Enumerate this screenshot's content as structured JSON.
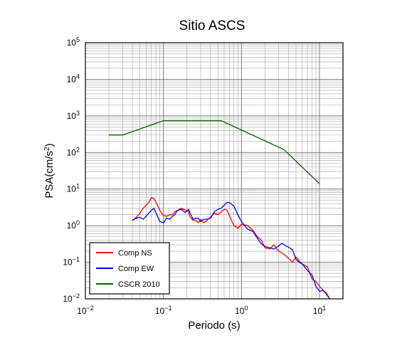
{
  "chart_data": {
    "type": "line",
    "title": "Sitio ASCS",
    "xlabel": "Periodo (s)",
    "ylabel": "PSA(cm/s2)",
    "x_scale": "log",
    "y_scale": "log",
    "xlim": [
      0.01,
      20
    ],
    "ylim": [
      0.01,
      100000
    ],
    "grid": true,
    "legend_position": "bottom-left",
    "x_ticks": [
      {
        "base": "10",
        "exp": "−2"
      },
      {
        "base": "10",
        "exp": "−1"
      },
      {
        "base": "10",
        "exp": "0"
      },
      {
        "base": "10",
        "exp": "1"
      }
    ],
    "y_ticks": [
      {
        "base": "10",
        "exp": "−2"
      },
      {
        "base": "10",
        "exp": "−1"
      },
      {
        "base": "10",
        "exp": "0"
      },
      {
        "base": "10",
        "exp": "1"
      },
      {
        "base": "10",
        "exp": "2"
      },
      {
        "base": "10",
        "exp": "3"
      },
      {
        "base": "10",
        "exp": "4"
      },
      {
        "base": "10",
        "exp": "5"
      }
    ],
    "series": [
      {
        "name": "Comp NS",
        "color": "#ff0000",
        "points": [
          [
            0.04,
            1.4
          ],
          [
            0.045,
            1.7
          ],
          [
            0.05,
            2.2
          ],
          [
            0.055,
            3.0
          ],
          [
            0.06,
            3.6
          ],
          [
            0.065,
            4.3
          ],
          [
            0.07,
            5.8
          ],
          [
            0.075,
            5.6
          ],
          [
            0.08,
            4.6
          ],
          [
            0.09,
            2.6
          ],
          [
            0.1,
            1.9
          ],
          [
            0.11,
            1.8
          ],
          [
            0.12,
            2.0
          ],
          [
            0.13,
            2.0
          ],
          [
            0.14,
            2.4
          ],
          [
            0.15,
            2.6
          ],
          [
            0.17,
            3.0
          ],
          [
            0.19,
            2.7
          ],
          [
            0.21,
            2.4
          ],
          [
            0.22,
            1.7
          ],
          [
            0.24,
            1.4
          ],
          [
            0.26,
            1.4
          ],
          [
            0.28,
            1.2
          ],
          [
            0.3,
            1.5
          ],
          [
            0.33,
            1.2
          ],
          [
            0.36,
            1.4
          ],
          [
            0.4,
            1.7
          ],
          [
            0.45,
            2.2
          ],
          [
            0.5,
            2.0
          ],
          [
            0.55,
            2.4
          ],
          [
            0.6,
            2.8
          ],
          [
            0.65,
            2.7
          ],
          [
            0.7,
            1.9
          ],
          [
            0.8,
            1.0
          ],
          [
            0.9,
            0.85
          ],
          [
            1.0,
            1.1
          ],
          [
            1.2,
            1.0
          ],
          [
            1.4,
            0.75
          ],
          [
            1.6,
            0.5
          ],
          [
            1.8,
            0.4
          ],
          [
            2.0,
            0.25
          ],
          [
            2.3,
            0.23
          ],
          [
            2.6,
            0.3
          ],
          [
            3.0,
            0.2
          ],
          [
            3.3,
            0.18
          ],
          [
            3.7,
            0.15
          ],
          [
            4.0,
            0.13
          ],
          [
            4.5,
            0.1
          ],
          [
            5.0,
            0.14
          ],
          [
            5.5,
            0.11
          ],
          [
            6.0,
            0.09
          ],
          [
            7.0,
            0.075
          ],
          [
            8.0,
            0.035
          ],
          [
            9.0,
            0.03
          ],
          [
            10.0,
            0.022
          ],
          [
            11.0,
            0.018
          ],
          [
            12.0,
            0.014
          ],
          [
            13.5,
            0.01
          ]
        ]
      },
      {
        "name": "Comp EW",
        "color": "#0000ff",
        "points": [
          [
            0.04,
            1.4
          ],
          [
            0.045,
            1.6
          ],
          [
            0.05,
            1.7
          ],
          [
            0.055,
            1.5
          ],
          [
            0.06,
            1.8
          ],
          [
            0.065,
            2.2
          ],
          [
            0.07,
            2.6
          ],
          [
            0.075,
            3.0
          ],
          [
            0.08,
            2.3
          ],
          [
            0.09,
            1.3
          ],
          [
            0.1,
            1.2
          ],
          [
            0.11,
            1.6
          ],
          [
            0.12,
            1.5
          ],
          [
            0.13,
            1.8
          ],
          [
            0.14,
            2.0
          ],
          [
            0.15,
            2.6
          ],
          [
            0.17,
            2.8
          ],
          [
            0.19,
            2.3
          ],
          [
            0.21,
            2.8
          ],
          [
            0.22,
            2.2
          ],
          [
            0.24,
            1.5
          ],
          [
            0.26,
            1.6
          ],
          [
            0.28,
            1.6
          ],
          [
            0.3,
            1.3
          ],
          [
            0.33,
            1.5
          ],
          [
            0.36,
            1.5
          ],
          [
            0.4,
            1.6
          ],
          [
            0.45,
            2.4
          ],
          [
            0.5,
            2.8
          ],
          [
            0.55,
            3.0
          ],
          [
            0.6,
            3.6
          ],
          [
            0.65,
            4.3
          ],
          [
            0.7,
            4.3
          ],
          [
            0.8,
            3.4
          ],
          [
            0.9,
            2.0
          ],
          [
            1.0,
            1.3
          ],
          [
            1.2,
            0.8
          ],
          [
            1.4,
            0.7
          ],
          [
            1.6,
            0.45
          ],
          [
            1.8,
            0.32
          ],
          [
            2.0,
            0.27
          ],
          [
            2.3,
            0.25
          ],
          [
            2.6,
            0.23
          ],
          [
            3.0,
            0.28
          ],
          [
            3.3,
            0.33
          ],
          [
            3.7,
            0.28
          ],
          [
            4.0,
            0.26
          ],
          [
            4.5,
            0.22
          ],
          [
            5.0,
            0.12
          ],
          [
            5.5,
            0.1
          ],
          [
            6.0,
            0.09
          ],
          [
            7.0,
            0.06
          ],
          [
            8.0,
            0.045
          ],
          [
            9.0,
            0.022
          ],
          [
            10.0,
            0.016
          ],
          [
            11.0,
            0.017
          ],
          [
            12.0,
            0.015
          ],
          [
            13.5,
            0.01
          ]
        ]
      },
      {
        "name": "CSCR 2010",
        "color": "#006400",
        "points": [
          [
            0.02,
            300
          ],
          [
            0.03,
            300
          ],
          [
            0.1,
            740
          ],
          [
            0.55,
            740
          ],
          [
            3.5,
            120
          ],
          [
            10.0,
            14
          ]
        ]
      }
    ]
  }
}
